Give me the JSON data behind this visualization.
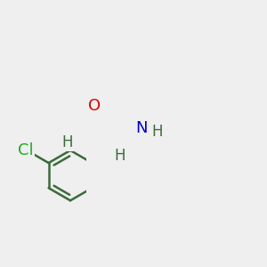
{
  "background_color": "#efefef",
  "bond_color": "#3a6b3a",
  "bond_width": 1.8,
  "atom_colors": {
    "O": "#dd0000",
    "N": "#0000cc",
    "Cl": "#22aa22",
    "H": "#3a6b3a",
    "C": "#3a6b3a"
  },
  "font_size_main": 13,
  "font_size_H": 12,
  "figsize": [
    3.0,
    3.0
  ],
  "dpi": 100
}
